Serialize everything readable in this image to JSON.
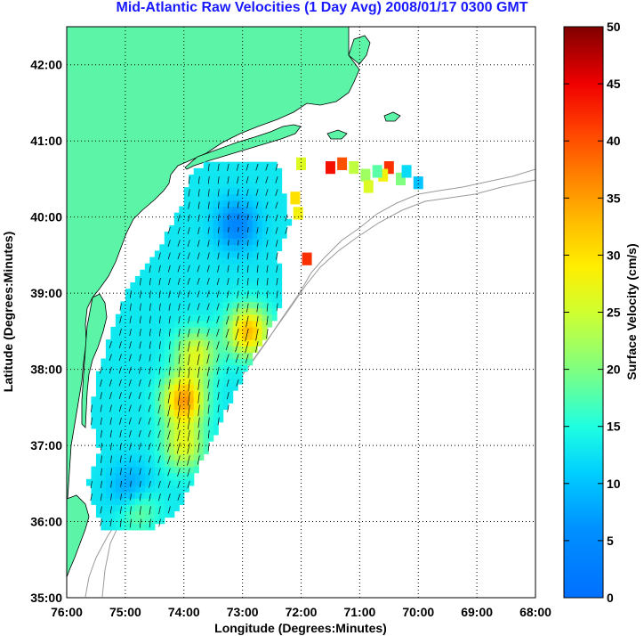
{
  "chart_data": {
    "type": "heatmap",
    "title": "Mid-Atlantic Raw Velocities (1 Day Avg) 2008/01/17 0300 GMT",
    "xlabel": "Longitude (Degrees:Minutes)",
    "ylabel": "Latitude (Degrees:Minutes)",
    "x_ticks": [
      {
        "value": -76,
        "label": "76:00"
      },
      {
        "value": -75,
        "label": "75:00"
      },
      {
        "value": -74,
        "label": "74:00"
      },
      {
        "value": -73,
        "label": "73:00"
      },
      {
        "value": -72,
        "label": "72:00"
      },
      {
        "value": -71,
        "label": "71:00"
      },
      {
        "value": -70,
        "label": "70:00"
      },
      {
        "value": -69,
        "label": "69:00"
      },
      {
        "value": -68,
        "label": "68:00"
      }
    ],
    "y_ticks": [
      {
        "value": 35,
        "label": "35:00"
      },
      {
        "value": 36,
        "label": "36:00"
      },
      {
        "value": 37,
        "label": "37:00"
      },
      {
        "value": 38,
        "label": "38:00"
      },
      {
        "value": 39,
        "label": "39:00"
      },
      {
        "value": 40,
        "label": "40:00"
      },
      {
        "value": 41,
        "label": "41:00"
      },
      {
        "value": 42,
        "label": "42:00"
      }
    ],
    "xlim": [
      -76,
      -68
    ],
    "ylim": [
      35,
      42.5
    ],
    "grid": true,
    "colorbar": {
      "label": "Surface Velocity (cm/s)",
      "range": [
        0,
        50
      ],
      "ticks": [
        "0",
        "5",
        "10",
        "15",
        "20",
        "25",
        "30",
        "35",
        "40",
        "45",
        "50"
      ],
      "colormap": "jet"
    },
    "land_color": "#5cf5a8",
    "speed_hotspots": [
      {
        "lon": -74.0,
        "lat": 37.6,
        "speed_cm_s": 35
      },
      {
        "lon": -72.9,
        "lat": 38.5,
        "speed_cm_s": 33
      },
      {
        "lon": -73.8,
        "lat": 38.2,
        "speed_cm_s": 26
      },
      {
        "lon": -74.0,
        "lat": 37.0,
        "speed_cm_s": 26
      },
      {
        "lon": -74.8,
        "lat": 36.2,
        "speed_cm_s": 22
      },
      {
        "lon": -73.1,
        "lat": 39.9,
        "speed_cm_s": 4
      },
      {
        "lon": -74.9,
        "lat": 36.4,
        "speed_cm_s": 4
      },
      {
        "lon": -71.4,
        "lat": 40.6,
        "speed_cm_s": 45
      },
      {
        "lon": -70.4,
        "lat": 40.6,
        "speed_cm_s": 40
      }
    ],
    "background_speed_cm_s": 13
  }
}
